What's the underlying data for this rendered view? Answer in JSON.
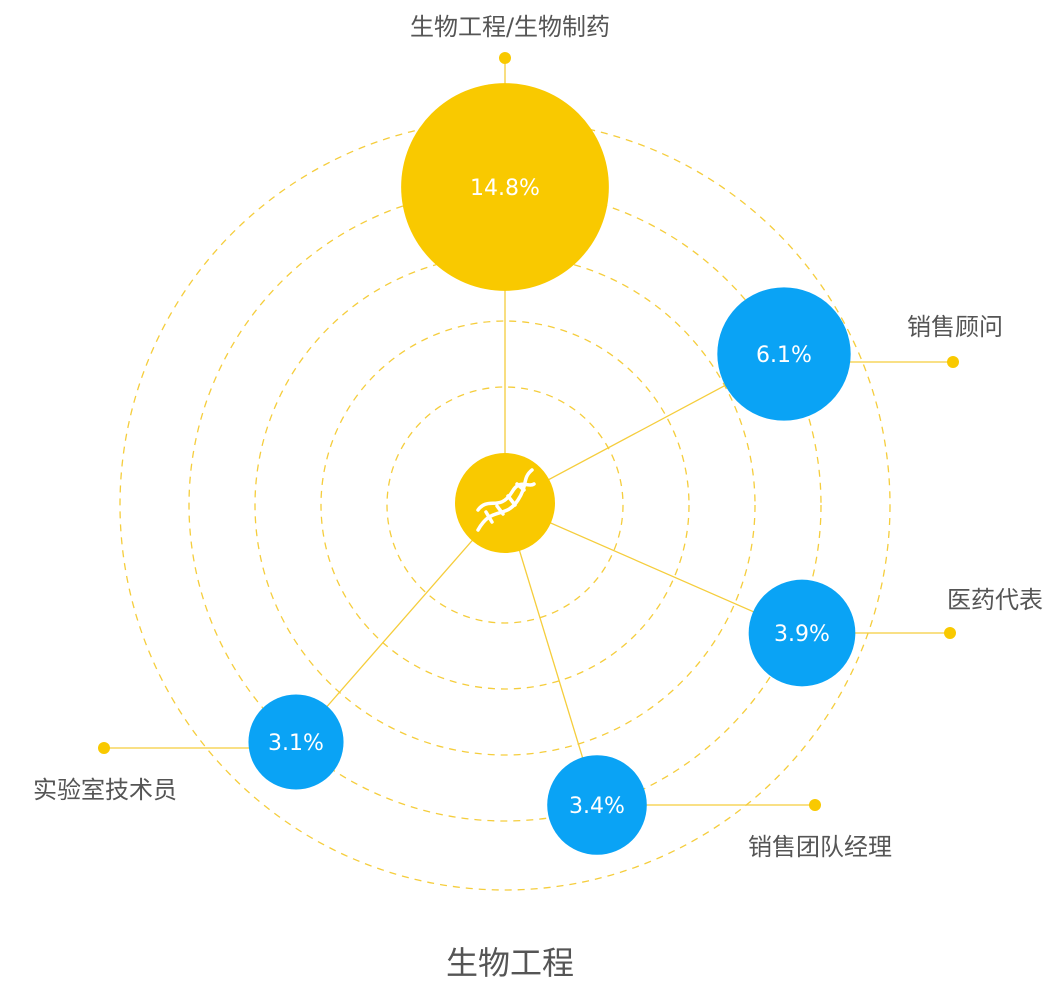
{
  "chart_data": {
    "type": "bubble",
    "title": "生物工程",
    "categories": [
      "生物工程/生物制药",
      "销售顾问",
      "医药代表",
      "销售团队经理",
      "实验室技术员"
    ],
    "values": [
      14.8,
      6.1,
      3.9,
      3.4,
      3.1
    ],
    "value_labels": [
      "14.8%",
      "6.1%",
      "3.9%",
      "3.4%",
      "3.1%"
    ],
    "colors": [
      "#f9c900",
      "#0aa3f5",
      "#0aa3f5",
      "#0aa3f5",
      "#0aa3f5"
    ]
  }
}
